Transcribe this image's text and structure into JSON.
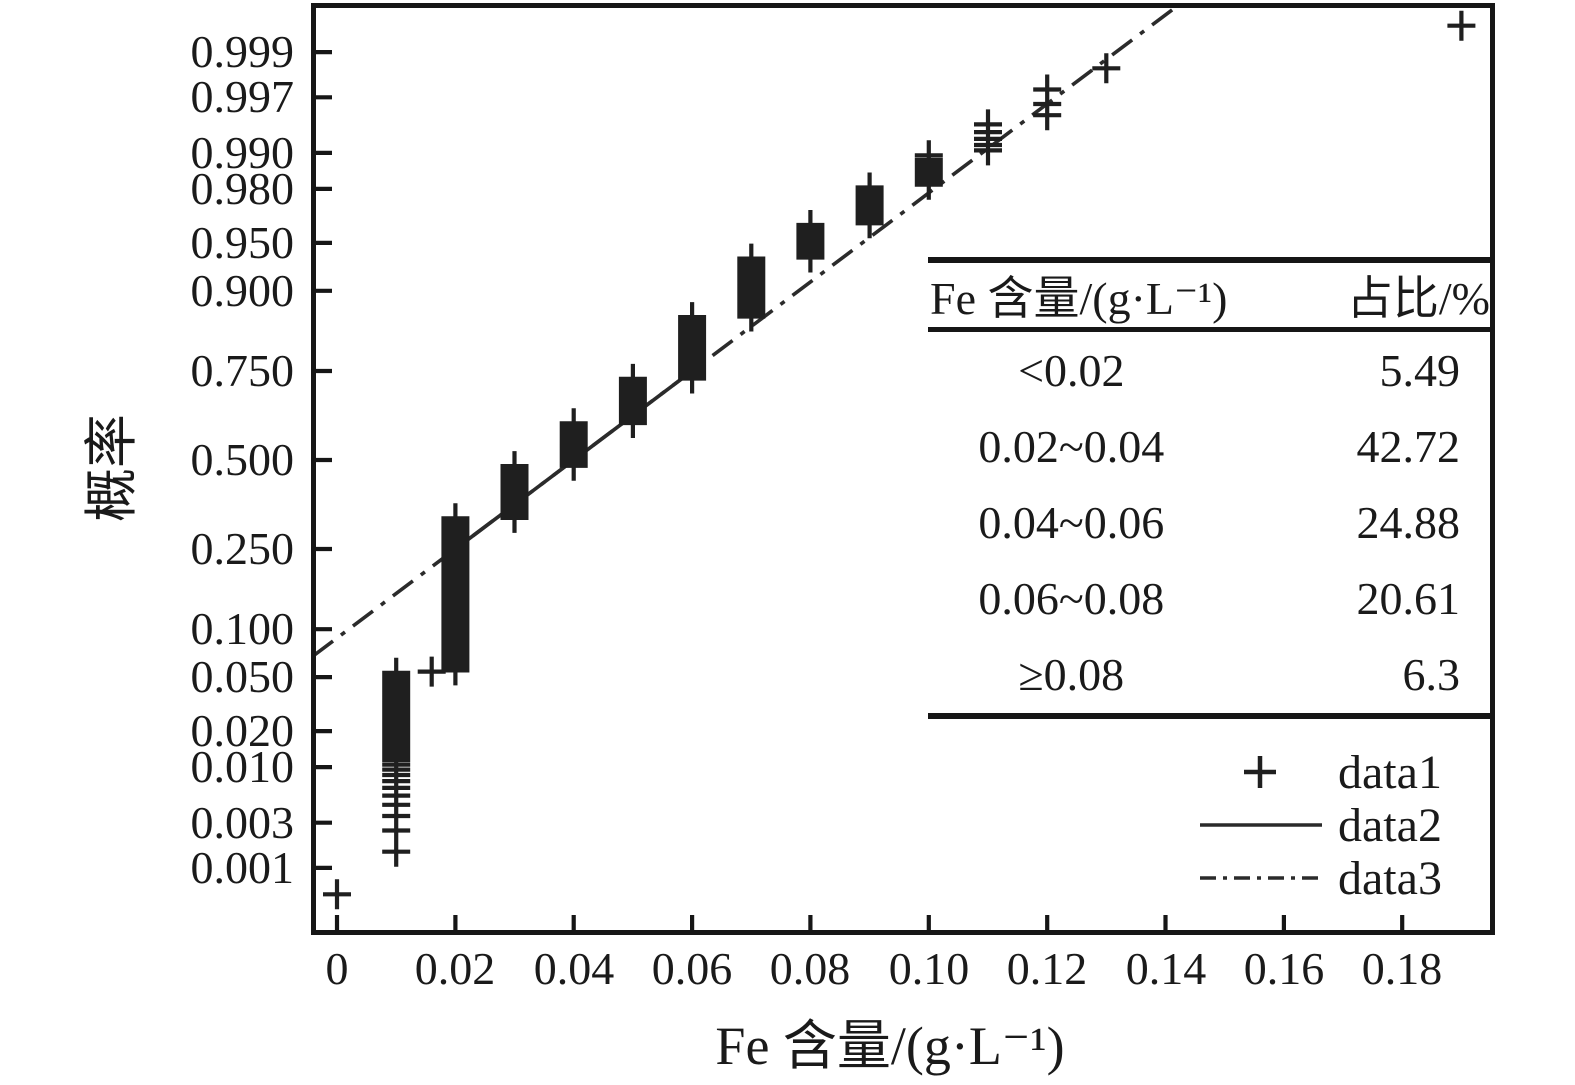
{
  "page": {
    "background": "#ffffff",
    "ink_color": "#1a1a1a"
  },
  "chart_data": {
    "type": "scatter",
    "variant": "normal-probability-plot",
    "title": "",
    "xlabel": "Fe 含量/(g·L⁻¹)",
    "ylabel": "概率",
    "x_ticks": [
      "0",
      "0.02",
      "0.04",
      "0.06",
      "0.08",
      "0.10",
      "0.12",
      "0.14",
      "0.16",
      "0.18"
    ],
    "y_ticks": [
      "0.999",
      "0.997",
      "0.990",
      "0.980",
      "0.950",
      "0.900",
      "0.750",
      "0.500",
      "0.250",
      "0.100",
      "0.050",
      "0.020",
      "0.010",
      "0.003",
      "0.001"
    ],
    "xlim": [
      -0.0041,
      0.1953
    ],
    "grid": false,
    "legend_position": "inside-bottom-right",
    "series": [
      {
        "name": "data1",
        "kind": "points",
        "marker": "plus",
        "color": "#1f1f1f",
        "total": 1000,
        "plotting_position": "(rank-0.5)/n",
        "value_counts": [
          [
            0,
            1
          ],
          [
            0.01,
            53
          ],
          [
            0.016,
            1
          ],
          [
            0.02,
            275
          ],
          [
            0.03,
            152
          ],
          [
            0.04,
            128
          ],
          [
            0.05,
            121
          ],
          [
            0.06,
            130
          ],
          [
            0.07,
            76
          ],
          [
            0.08,
            26
          ],
          [
            0.09,
            18
          ],
          [
            0.1,
            9
          ],
          [
            0.11,
            5
          ],
          [
            0.12,
            3
          ],
          [
            0.13,
            1
          ],
          [
            0.19,
            1
          ]
        ]
      },
      {
        "name": "data2",
        "kind": "line",
        "style": "solid",
        "color": "#2b2b2b",
        "fit": "through-quartiles",
        "x_at_p25": 0.02,
        "x_at_p75": 0.06
      },
      {
        "name": "data3",
        "kind": "line",
        "style": "dash-dot",
        "color": "#2b2b2b",
        "fit": "extrapolated-quartile-line",
        "x_at_p25": 0.02,
        "x_at_p75": 0.06
      }
    ]
  },
  "inset_table": {
    "header": {
      "col1": "Fe 含量/(g·L⁻¹)",
      "col2": "占比/%"
    },
    "rows": [
      {
        "range": "<0.02",
        "pct": "5.49"
      },
      {
        "range": "0.02~0.04",
        "pct": "42.72"
      },
      {
        "range": "0.04~0.06",
        "pct": "24.88"
      },
      {
        "range": "0.06~0.08",
        "pct": "20.61"
      },
      {
        "range": "≥0.08",
        "pct": "6.3"
      }
    ]
  },
  "legend": {
    "entries": [
      {
        "label": "data1",
        "marker": "plus"
      },
      {
        "label": "data2",
        "marker": "solid-line"
      },
      {
        "label": "data3",
        "marker": "dash-dot-line"
      }
    ]
  }
}
